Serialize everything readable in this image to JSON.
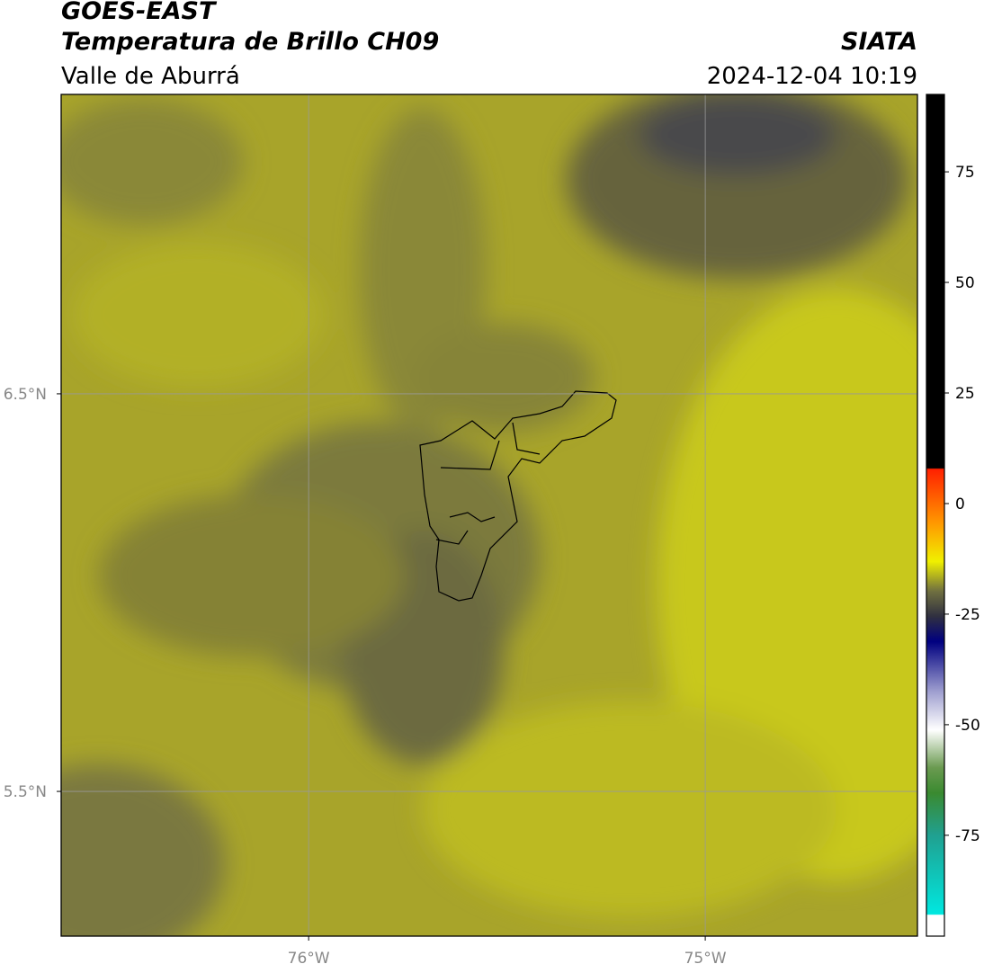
{
  "header": {
    "title": "GOES-EAST",
    "product": "Temperatura de Brillo CH09",
    "region": "Valle de Aburrá",
    "brand": "SIATA",
    "datetime": "2024-12-04 10:19"
  },
  "map": {
    "xlim": [
      -76.624,
      -74.465
    ],
    "ylim": [
      5.136,
      7.253
    ],
    "xticks": [
      {
        "value": -76,
        "label": "76°W"
      },
      {
        "value": -75,
        "label": "75°W"
      }
    ],
    "yticks": [
      {
        "value": 6.5,
        "label": "6.5°N"
      },
      {
        "value": 5.5,
        "label": "5.5°N"
      }
    ],
    "grid": true
  },
  "colorbar": {
    "lim": [
      -97.8,
      92.5
    ],
    "ticks": [
      75,
      50,
      25,
      0,
      -25,
      -50,
      -75
    ]
  }
}
